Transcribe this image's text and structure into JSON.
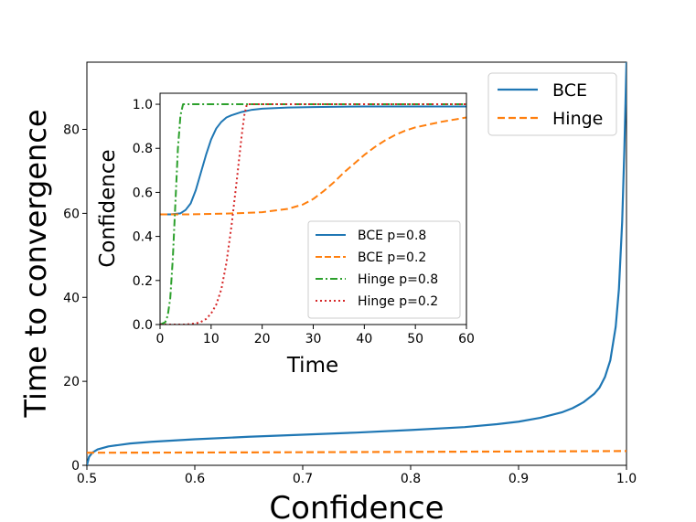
{
  "chart_data": [
    {
      "id": "main",
      "type": "line",
      "title": "",
      "xlabel": "Confidence",
      "ylabel": "Time to convergence",
      "xlim": [
        0.5,
        1.0
      ],
      "ylim": [
        0,
        96
      ],
      "xticks": [
        0.5,
        0.6,
        0.7,
        0.8,
        0.9,
        1.0
      ],
      "xtick_labels": [
        "0.5",
        "0.6",
        "0.7",
        "0.8",
        "0.9",
        "1.0"
      ],
      "yticks": [
        0,
        20,
        40,
        60,
        80
      ],
      "ytick_labels": [
        "0",
        "20",
        "40",
        "60",
        "80"
      ],
      "legend_position": "top-right",
      "series": [
        {
          "name": "BCE",
          "color": "#1f77b4",
          "dash": "solid",
          "x": [
            0.5,
            0.502,
            0.505,
            0.51,
            0.52,
            0.54,
            0.56,
            0.6,
            0.65,
            0.7,
            0.75,
            0.8,
            0.85,
            0.88,
            0.9,
            0.92,
            0.94,
            0.95,
            0.96,
            0.97,
            0.975,
            0.98,
            0.985,
            0.99,
            0.993,
            0.996,
            0.998,
            1.0
          ],
          "y": [
            0,
            2.0,
            3.0,
            3.8,
            4.5,
            5.2,
            5.6,
            6.2,
            6.8,
            7.3,
            7.8,
            8.4,
            9.1,
            9.8,
            10.4,
            11.3,
            12.6,
            13.6,
            15.0,
            17.0,
            18.5,
            21.0,
            25.0,
            33.0,
            42.0,
            58.0,
            75.0,
            96.0
          ]
        },
        {
          "name": "Hinge",
          "color": "#ff7f0e",
          "dash": "dashed",
          "x": [
            0.5,
            0.55,
            0.6,
            0.65,
            0.7,
            0.75,
            0.8,
            0.85,
            0.9,
            0.95,
            1.0
          ],
          "y": [
            3.0,
            3.02,
            3.05,
            3.08,
            3.12,
            3.16,
            3.2,
            3.25,
            3.3,
            3.35,
            3.4
          ]
        }
      ]
    },
    {
      "id": "inset",
      "type": "line",
      "title": "",
      "xlabel": "Time",
      "ylabel": "Confidence",
      "xlim": [
        0,
        60
      ],
      "ylim": [
        0,
        1.05
      ],
      "xticks": [
        0,
        10,
        20,
        30,
        40,
        50,
        60
      ],
      "xtick_labels": [
        "0",
        "10",
        "20",
        "30",
        "40",
        "50",
        "60"
      ],
      "yticks": [
        0,
        0.2,
        0.4,
        0.6,
        0.8,
        1.0
      ],
      "ytick_labels": [
        "0.0",
        "0.2",
        "0.4",
        "0.6",
        "0.8",
        "1.0"
      ],
      "legend_position": "lower-right",
      "series": [
        {
          "name": "BCE p=0.8",
          "color": "#1f77b4",
          "dash": "solid",
          "x": [
            0,
            2,
            4,
            5,
            6,
            7,
            8,
            9,
            10,
            11,
            12,
            13,
            14,
            16,
            18,
            20,
            25,
            30,
            40,
            50,
            60
          ],
          "y": [
            0.5,
            0.5,
            0.505,
            0.52,
            0.55,
            0.61,
            0.69,
            0.77,
            0.84,
            0.89,
            0.92,
            0.94,
            0.95,
            0.965,
            0.975,
            0.98,
            0.985,
            0.987,
            0.99,
            0.99,
            0.99
          ]
        },
        {
          "name": "BCE p=0.2",
          "color": "#ff7f0e",
          "dash": "dashed",
          "x": [
            0,
            5,
            10,
            15,
            20,
            25,
            28,
            30,
            32,
            34,
            36,
            38,
            40,
            42,
            44,
            46,
            48,
            50,
            55,
            60
          ],
          "y": [
            0.5,
            0.5,
            0.502,
            0.505,
            0.51,
            0.525,
            0.545,
            0.57,
            0.605,
            0.645,
            0.69,
            0.73,
            0.77,
            0.805,
            0.835,
            0.86,
            0.88,
            0.895,
            0.92,
            0.94
          ]
        },
        {
          "name": "Hinge p=0.8",
          "color": "#2ca02c",
          "dash": "dashdot",
          "x": [
            0,
            1,
            1.5,
            2,
            2.5,
            3,
            3.5,
            4,
            4.5,
            60
          ],
          "y": [
            0.0,
            0.01,
            0.04,
            0.12,
            0.3,
            0.55,
            0.8,
            0.95,
            1.0,
            1.0
          ]
        },
        {
          "name": "Hinge p=0.2",
          "color": "#d62728",
          "dash": "dotted",
          "x": [
            0,
            5,
            7,
            8,
            9,
            10,
            11,
            12,
            13,
            14,
            15,
            16,
            16.5,
            17,
            60
          ],
          "y": [
            0.0,
            0.0,
            0.005,
            0.012,
            0.025,
            0.05,
            0.09,
            0.16,
            0.28,
            0.45,
            0.65,
            0.86,
            0.95,
            1.0,
            1.0
          ]
        }
      ]
    }
  ]
}
